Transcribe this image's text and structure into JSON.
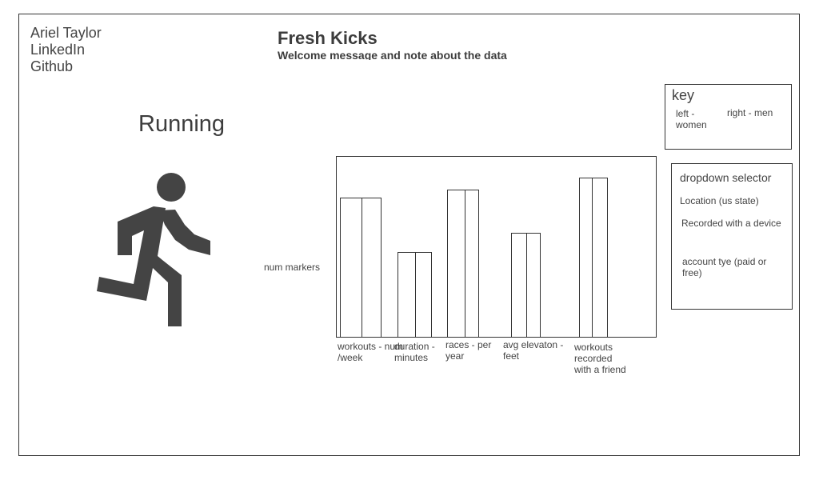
{
  "profile": {
    "name": "Ariel Taylor",
    "linkedin": "LinkedIn",
    "github": "Github"
  },
  "header": {
    "title": "Fresh Kicks",
    "subtitle": "Welcome message and note about the data"
  },
  "section": {
    "title": "Running",
    "icon": "running-person-icon"
  },
  "key": {
    "title": "key",
    "items": [
      "left - women",
      "right - men"
    ]
  },
  "dropdown": {
    "title": "dropdown selector",
    "items": [
      "Location (us state)",
      "Recorded with a device",
      "account tye (paid or free)"
    ]
  },
  "chart_data": {
    "type": "bar",
    "ylabel": "num markers",
    "categories": [
      "workouts - num /week",
      "duration - minutes",
      "races - per year",
      "avg elevaton - feet",
      "workouts recorded with a friend"
    ],
    "series": [
      {
        "name": "left - women",
        "values": [
          175,
          107,
          185,
          131,
          200
        ]
      },
      {
        "name": "right - men",
        "values": [
          175,
          107,
          185,
          131,
          200
        ]
      }
    ],
    "ylim": [
      0,
      227
    ]
  }
}
